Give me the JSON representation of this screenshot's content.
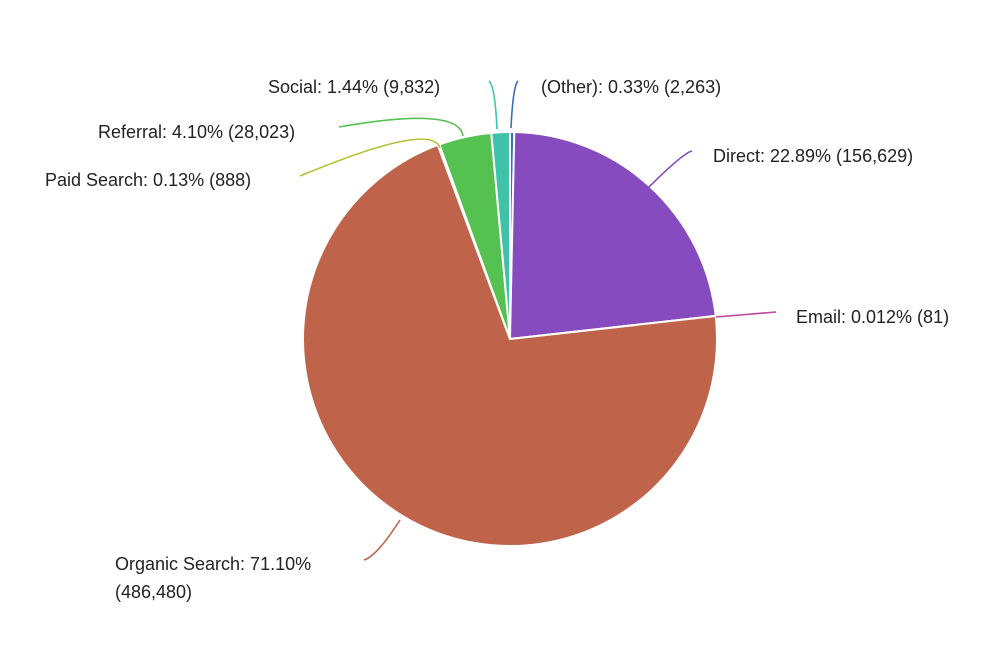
{
  "chart_data": {
    "type": "pie",
    "title": "",
    "slices": [
      {
        "name": "(Other)",
        "percent": 0.33,
        "count": 2263,
        "label_line1": "(Other): 0.33% (2,263)",
        "label_line2": "",
        "color": "#3b6fb6"
      },
      {
        "name": "Direct",
        "percent": 22.89,
        "count": 156629,
        "label_line1": "Direct: 22.89% (156,629)",
        "label_line2": "",
        "color": "#864bbf"
      },
      {
        "name": "Email",
        "percent": 0.012,
        "count": 81,
        "label_line1": "Email: 0.012% (81)",
        "label_line2": "",
        "color": "#c2449e"
      },
      {
        "name": "Organic Search",
        "percent": 71.1,
        "count": 486480,
        "label_line1": "Organic Search: 71.10%",
        "label_line2": "(486,480)",
        "color": "#bf644a"
      },
      {
        "name": "Paid Search",
        "percent": 0.13,
        "count": 888,
        "label_line1": "Paid Search: 0.13% (888)",
        "label_line2": "",
        "color": "#b4c236"
      },
      {
        "name": "Referral",
        "percent": 4.1,
        "count": 28023,
        "label_line1": "Referral: 4.10% (28,023)",
        "label_line2": "",
        "color": "#55c150"
      },
      {
        "name": "Social",
        "percent": 1.44,
        "count": 9832,
        "label_line1": "Social: 1.44% (9,832)",
        "label_line2": "",
        "color": "#3fc2a8"
      }
    ]
  }
}
